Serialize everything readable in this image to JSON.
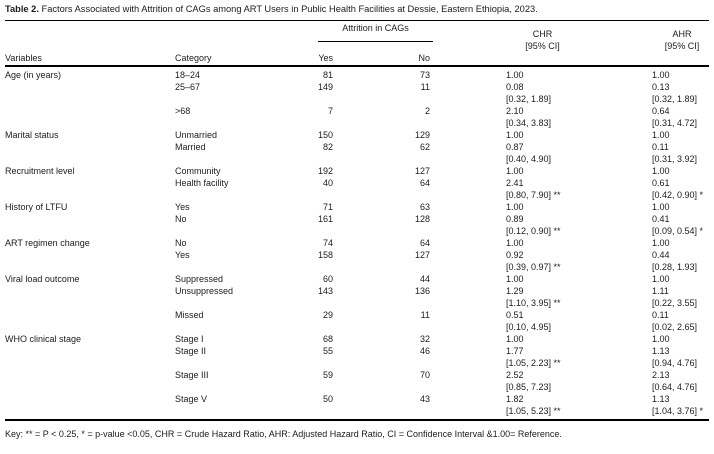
{
  "table": {
    "title_label": "Table 2.",
    "title_text": "Factors Associated with Attrition of CAGs among ART Users in Public Health Facilities at Dessie, Eastern Ethiopia, 2023.",
    "header": {
      "spanner": "Attrition in CAGs",
      "variables": "Variables",
      "category": "Category",
      "yes": "Yes",
      "no": "No",
      "chr_line1": "CHR",
      "chr_line2": "[95% CI]",
      "ahr_line1": "AHR",
      "ahr_line2": "[95% CI]"
    },
    "rows": [
      {
        "variable": "Age (in years)",
        "category": "18–24",
        "yes": "81",
        "no": "73",
        "chr": "1.00",
        "ahr": "1.00"
      },
      {
        "variable": "",
        "category": "25–67",
        "yes": "149",
        "no": "11",
        "chr": "0.08",
        "ahr": "0.13"
      },
      {
        "variable": "",
        "category": "",
        "yes": "",
        "no": "",
        "chr": "[0.32, 1.89]",
        "ahr": "[0.32, 1.89]"
      },
      {
        "variable": "",
        "category": ">68",
        "yes": "7",
        "no": "2",
        "chr": "2.10",
        "ahr": "0.64"
      },
      {
        "variable": "",
        "category": "",
        "yes": "",
        "no": "",
        "chr": "[0.34, 3.83]",
        "ahr": "[0.31, 4.72]"
      },
      {
        "variable": "Marital status",
        "category": "Unmarried",
        "yes": "150",
        "no": "129",
        "chr": "1.00",
        "ahr": "1.00"
      },
      {
        "variable": "",
        "category": "Married",
        "yes": "82",
        "no": "62",
        "chr": "0.87",
        "ahr": "0.11"
      },
      {
        "variable": "",
        "category": "",
        "yes": "",
        "no": "",
        "chr": "[0.40, 4.90]",
        "ahr": "[0.31, 3.92]"
      },
      {
        "variable": "Recruitment level",
        "category": "Community",
        "yes": "192",
        "no": "127",
        "chr": "1.00",
        "ahr": "1.00"
      },
      {
        "variable": "",
        "category": "Health facility",
        "yes": "40",
        "no": "64",
        "chr": "2.41",
        "ahr": "0.61"
      },
      {
        "variable": "",
        "category": "",
        "yes": "",
        "no": "",
        "chr": "[0.80, 7.90] **",
        "ahr": "[0.42, 0.90] *"
      },
      {
        "variable": "History of LTFU",
        "category": "Yes",
        "yes": "71",
        "no": "63",
        "chr": "1.00",
        "ahr": "1.00"
      },
      {
        "variable": "",
        "category": "No",
        "yes": "161",
        "no": "128",
        "chr": "0.89",
        "ahr": "0.41"
      },
      {
        "variable": "",
        "category": "",
        "yes": "",
        "no": "",
        "chr": "[0.12, 0.90] **",
        "ahr": "[0.09, 0.54] *"
      },
      {
        "variable": "ART regimen change",
        "category": "No",
        "yes": "74",
        "no": "64",
        "chr": "1.00",
        "ahr": "1.00"
      },
      {
        "variable": "",
        "category": "Yes",
        "yes": "158",
        "no": "127",
        "chr": "0.92",
        "ahr": "0.44"
      },
      {
        "variable": "",
        "category": "",
        "yes": "",
        "no": "",
        "chr": "[0.39, 0.97] **",
        "ahr": "[0.28, 1.93]"
      },
      {
        "variable": "Viral load outcome",
        "category": "Suppressed",
        "yes": "60",
        "no": "44",
        "chr": "1.00",
        "ahr": "1.00"
      },
      {
        "variable": "",
        "category": "Unsuppressed",
        "yes": "143",
        "no": "136",
        "chr": "1.29",
        "ahr": "1.11"
      },
      {
        "variable": "",
        "category": "",
        "yes": "",
        "no": "",
        "chr": "[1.10, 3.95] **",
        "ahr": "[0.22, 3.55]"
      },
      {
        "variable": "",
        "category": "Missed",
        "yes": "29",
        "no": "11",
        "chr": "0.51",
        "ahr": "0.11"
      },
      {
        "variable": "",
        "category": "",
        "yes": "",
        "no": "",
        "chr": "[0.10, 4.95]",
        "ahr": "[0.02, 2.65]"
      },
      {
        "variable": "WHO clinical stage",
        "category": "Stage I",
        "yes": "68",
        "no": "32",
        "chr": "1.00",
        "ahr": "1.00"
      },
      {
        "variable": "",
        "category": "Stage II",
        "yes": "55",
        "no": "46",
        "chr": "1.77",
        "ahr": "1.13"
      },
      {
        "variable": "",
        "category": "",
        "yes": "",
        "no": "",
        "chr": "[1.05, 2.23] **",
        "ahr": "[0.94, 4.76]"
      },
      {
        "variable": "",
        "category": "Stage III",
        "yes": "59",
        "no": "70",
        "chr": "2.52",
        "ahr": "2.13"
      },
      {
        "variable": "",
        "category": "",
        "yes": "",
        "no": "",
        "chr": "[0.85, 7.23]",
        "ahr": "[0.64, 4.76]"
      },
      {
        "variable": "",
        "category": "Stage V",
        "yes": "50",
        "no": "43",
        "chr": "1.82",
        "ahr": "1.13"
      },
      {
        "variable": "",
        "category": "",
        "yes": "",
        "no": "",
        "chr": "[1.05, 5.23] **",
        "ahr": "[1.04, 3.76] *"
      }
    ],
    "footnote": "Key: ** = P < 0.25, * = p-value <0.05, CHR = Crude Hazard Ratio, AHR: Adjusted Hazard Ratio, CI = Confidence Interval &1.00= Reference."
  }
}
